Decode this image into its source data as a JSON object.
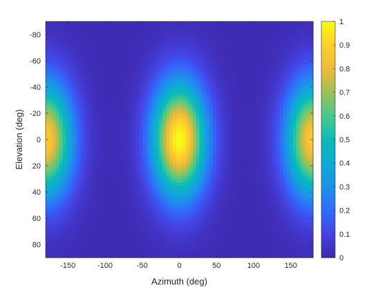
{
  "chart_data": {
    "type": "heatmap",
    "title": "",
    "xlabel": "Azimuth (deg)",
    "ylabel": "Elevation (deg)",
    "xlim": [
      -180,
      180
    ],
    "ylim": [
      -90,
      90
    ],
    "y_direction": "reverse",
    "x_ticks": [
      -150,
      -100,
      -50,
      0,
      50,
      100,
      150
    ],
    "y_ticks": [
      -80,
      -60,
      -40,
      -20,
      0,
      20,
      40,
      60,
      80
    ],
    "colormap": "parula",
    "colorbar": {
      "limits": [
        0,
        1
      ],
      "ticks": [
        0,
        0.1,
        0.2,
        0.3,
        0.4,
        0.5,
        0.6,
        0.7,
        0.8,
        0.9,
        1
      ],
      "tick_labels": [
        "0",
        "0.1",
        "0.2",
        "0.3",
        "0.4",
        "0.5",
        "0.6",
        "0.7",
        "0.8",
        "0.9",
        "1"
      ],
      "location": "right"
    },
    "peaks": [
      {
        "azimuth": 0,
        "elevation": 0,
        "value": 1.0
      },
      {
        "azimuth": -180,
        "elevation": 0,
        "value": 0.88
      },
      {
        "azimuth": 180,
        "elevation": 0,
        "value": 0.88
      }
    ],
    "background_value": 0.02,
    "grid": false
  }
}
